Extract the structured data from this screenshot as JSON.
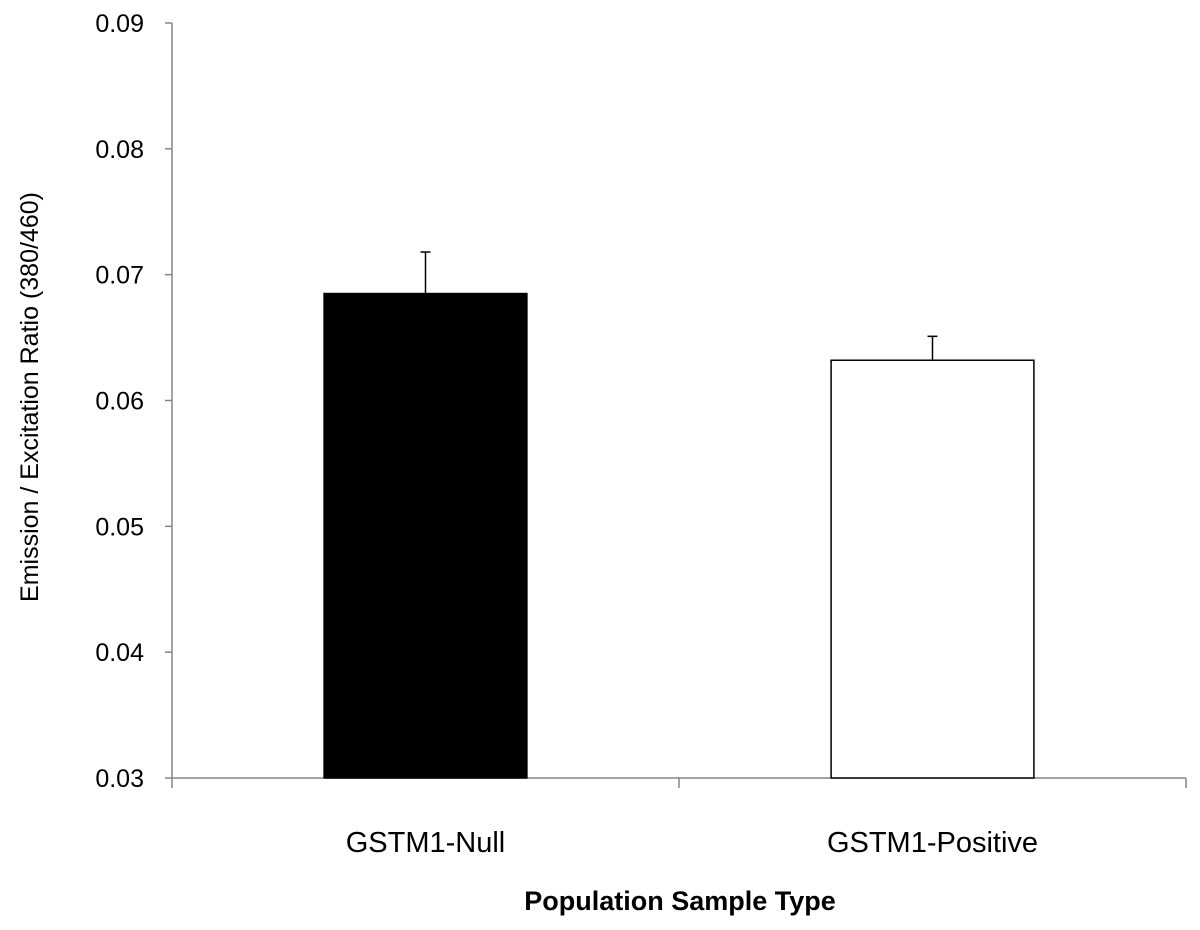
{
  "chart_data": {
    "type": "bar",
    "categories": [
      "GSTM1-Null",
      "GSTM1-Positive"
    ],
    "values": [
      0.0685,
      0.0632
    ],
    "errors": [
      0.0033,
      0.0019
    ],
    "bar_colors": [
      "#000000",
      "#ffffff"
    ],
    "bar_stroke": "#000000",
    "axis_color": "#868686",
    "xlabel": "Population Sample Type",
    "ylabel": "Emission / Excitation Ratio (380/460)",
    "ylim": [
      0.03,
      0.09
    ],
    "yticks": [
      "0.03",
      "0.04",
      "0.05",
      "0.06",
      "0.07",
      "0.08",
      "0.09"
    ],
    "grid": false,
    "legend": "none"
  }
}
